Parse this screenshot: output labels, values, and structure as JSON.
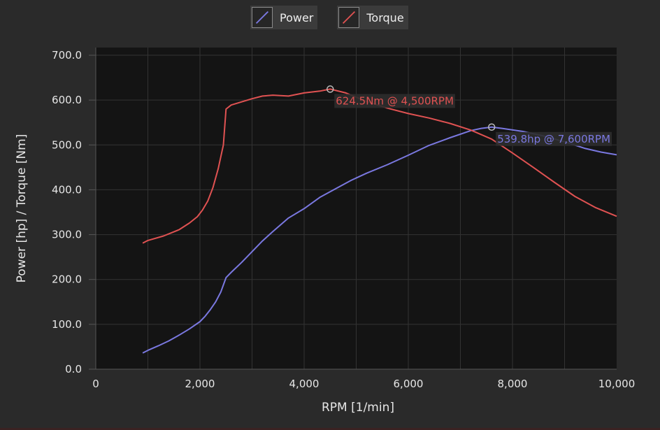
{
  "chart_data": {
    "type": "line",
    "xlabel": "RPM [1/min]",
    "ylabel": "Power [hp] / Torque [Nm]",
    "xlim": [
      0,
      10000
    ],
    "ylim": [
      0,
      700
    ],
    "grid": true,
    "legend_position": "top-center",
    "x_ticks": [
      "0",
      "2,000",
      "4,000",
      "6,000",
      "8,000",
      "10,000"
    ],
    "y_ticks": [
      "0.0",
      "100.0",
      "200.0",
      "300.0",
      "400.0",
      "500.0",
      "600.0",
      "700.0"
    ],
    "series": [
      {
        "name": "Power",
        "color": "#7a78e0",
        "x": [
          900,
          1000,
          1200,
          1400,
          1600,
          1800,
          2000,
          2100,
          2200,
          2300,
          2400,
          2500,
          2600,
          2800,
          3000,
          3200,
          3400,
          3700,
          4000,
          4300,
          4600,
          4900,
          5200,
          5600,
          6000,
          6400,
          6800,
          7200,
          7400,
          7600,
          7800,
          8200,
          8600,
          9000,
          9400,
          9700,
          10000
        ],
        "values": [
          36,
          42,
          52,
          63,
          76,
          90,
          106,
          118,
          133,
          150,
          172,
          204,
          216,
          238,
          262,
          286,
          307,
          337,
          358,
          383,
          402,
          421,
          437,
          456,
          477,
          499,
          516,
          532,
          537,
          539.8,
          537,
          530,
          520,
          507,
          492,
          484,
          478
        ]
      },
      {
        "name": "Torque",
        "color": "#e05252",
        "x": [
          900,
          1000,
          1300,
          1600,
          1800,
          1950,
          2050,
          2150,
          2250,
          2350,
          2450,
          2500,
          2600,
          2800,
          3000,
          3200,
          3400,
          3700,
          4000,
          4300,
          4500,
          4800,
          5200,
          5600,
          6000,
          6400,
          6800,
          7200,
          7600,
          8000,
          8400,
          8800,
          9200,
          9600,
          10000
        ],
        "values": [
          281,
          287,
          297,
          311,
          326,
          340,
          355,
          375,
          405,
          447,
          500,
          580,
          589,
          596,
          603,
          609,
          611,
          609,
          616,
          620,
          624.5,
          616,
          597,
          582,
          570,
          560,
          548,
          533,
          513,
          482,
          450,
          417,
          385,
          360,
          341
        ]
      }
    ],
    "annotations": [
      {
        "series": "Torque",
        "x": 4500,
        "y": 624.5,
        "text": "624.5Nm @ 4,500RPM",
        "color": "#e05252"
      },
      {
        "series": "Power",
        "x": 7600,
        "y": 539.8,
        "text": "539.8hp @ 7,600RPM",
        "color": "#7a78e0"
      }
    ]
  }
}
